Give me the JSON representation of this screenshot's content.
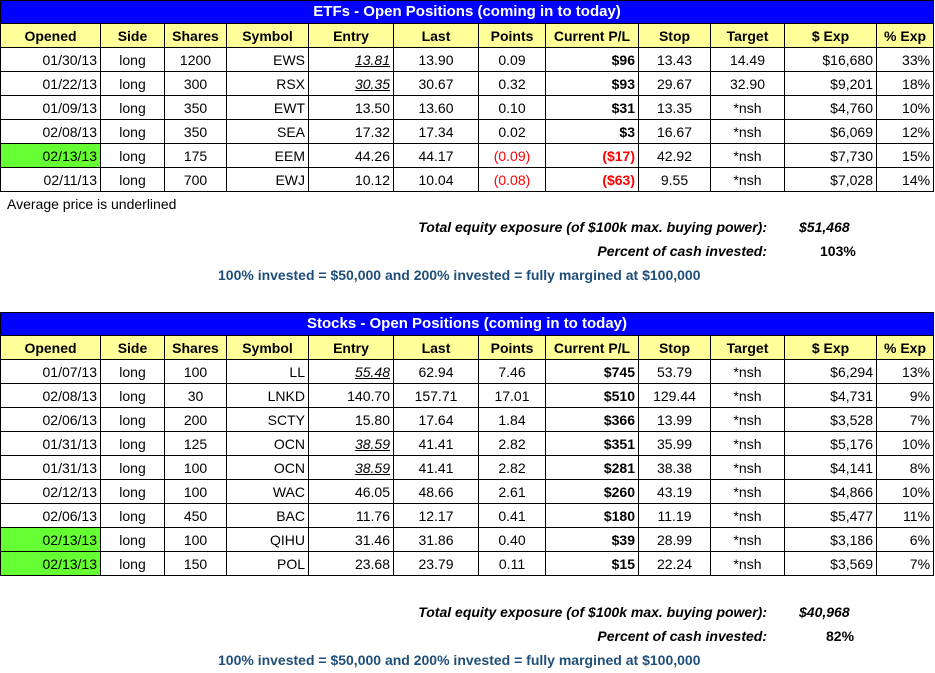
{
  "headers": [
    "Opened",
    "Side",
    "Shares",
    "Symbol",
    "Entry",
    "Last",
    "Points",
    "Current P/L",
    "Stop",
    "Target",
    "$ Exp",
    "% Exp"
  ],
  "etfs": {
    "title": "ETFs - Open Positions (coming in to today)",
    "rows": [
      {
        "opened": "01/30/13",
        "side": "long",
        "shares": "1200",
        "symbol": "EWS",
        "entry": "13.81",
        "last": "13.90",
        "points": "0.09",
        "pl": "$96",
        "stop": "13.43",
        "target": "14.49",
        "exp": "$16,680",
        "pexp": "33%",
        "entry_underlined": true,
        "negative": false,
        "new": false
      },
      {
        "opened": "01/22/13",
        "side": "long",
        "shares": "300",
        "symbol": "RSX",
        "entry": "30.35",
        "last": "30.67",
        "points": "0.32",
        "pl": "$93",
        "stop": "29.67",
        "target": "32.90",
        "exp": "$9,201",
        "pexp": "18%",
        "entry_underlined": true,
        "negative": false,
        "new": false
      },
      {
        "opened": "01/09/13",
        "side": "long",
        "shares": "350",
        "symbol": "EWT",
        "entry": "13.50",
        "last": "13.60",
        "points": "0.10",
        "pl": "$31",
        "stop": "13.35",
        "target": "*nsh",
        "exp": "$4,760",
        "pexp": "10%",
        "entry_underlined": false,
        "negative": false,
        "new": false
      },
      {
        "opened": "02/08/13",
        "side": "long",
        "shares": "350",
        "symbol": "SEA",
        "entry": "17.32",
        "last": "17.34",
        "points": "0.02",
        "pl": "$3",
        "stop": "16.67",
        "target": "*nsh",
        "exp": "$6,069",
        "pexp": "12%",
        "entry_underlined": false,
        "negative": false,
        "new": false
      },
      {
        "opened": "02/13/13",
        "side": "long",
        "shares": "175",
        "symbol": "EEM",
        "entry": "44.26",
        "last": "44.17",
        "points": "(0.09)",
        "pl": "($17)",
        "stop": "42.92",
        "target": "*nsh",
        "exp": "$7,730",
        "pexp": "15%",
        "entry_underlined": false,
        "negative": true,
        "new": true
      },
      {
        "opened": "02/11/13",
        "side": "long",
        "shares": "700",
        "symbol": "EWJ",
        "entry": "10.12",
        "last": "10.04",
        "points": "(0.08)",
        "pl": "($63)",
        "stop": "9.55",
        "target": "*nsh",
        "exp": "$7,028",
        "pexp": "14%",
        "entry_underlined": false,
        "negative": true,
        "new": false
      }
    ],
    "note": "Average price is underlined",
    "exposure_label": "Total equity exposure (of $100k max. buying power):",
    "exposure_value": "$51,468",
    "cash_label": "Percent of cash invested:",
    "cash_value": "103%",
    "invested_text": "100% invested = $50,000 and 200% invested = fully margined at $100,000"
  },
  "stocks": {
    "title": "Stocks - Open Positions (coming in to today)",
    "rows": [
      {
        "opened": "01/07/13",
        "side": "long",
        "shares": "100",
        "symbol": "LL",
        "entry": "55.48",
        "last": "62.94",
        "points": "7.46",
        "pl": "$745",
        "stop": "53.79",
        "target": "*nsh",
        "exp": "$6,294",
        "pexp": "13%",
        "entry_underlined": true,
        "negative": false,
        "new": false
      },
      {
        "opened": "02/08/13",
        "side": "long",
        "shares": "30",
        "symbol": "LNKD",
        "entry": "140.70",
        "last": "157.71",
        "points": "17.01",
        "pl": "$510",
        "stop": "129.44",
        "target": "*nsh",
        "exp": "$4,731",
        "pexp": "9%",
        "entry_underlined": false,
        "negative": false,
        "new": false
      },
      {
        "opened": "02/06/13",
        "side": "long",
        "shares": "200",
        "symbol": "SCTY",
        "entry": "15.80",
        "last": "17.64",
        "points": "1.84",
        "pl": "$366",
        "stop": "13.99",
        "target": "*nsh",
        "exp": "$3,528",
        "pexp": "7%",
        "entry_underlined": false,
        "negative": false,
        "new": false
      },
      {
        "opened": "01/31/13",
        "side": "long",
        "shares": "125",
        "symbol": "OCN",
        "entry": "38.59",
        "last": "41.41",
        "points": "2.82",
        "pl": "$351",
        "stop": "35.99",
        "target": "*nsh",
        "exp": "$5,176",
        "pexp": "10%",
        "entry_underlined": true,
        "negative": false,
        "new": false
      },
      {
        "opened": "01/31/13",
        "side": "long",
        "shares": "100",
        "symbol": "OCN",
        "entry": "38.59",
        "last": "41.41",
        "points": "2.82",
        "pl": "$281",
        "stop": "38.38",
        "target": "*nsh",
        "exp": "$4,141",
        "pexp": "8%",
        "entry_underlined": true,
        "negative": false,
        "new": false
      },
      {
        "opened": "02/12/13",
        "side": "long",
        "shares": "100",
        "symbol": "WAC",
        "entry": "46.05",
        "last": "48.66",
        "points": "2.61",
        "pl": "$260",
        "stop": "43.19",
        "target": "*nsh",
        "exp": "$4,866",
        "pexp": "10%",
        "entry_underlined": false,
        "negative": false,
        "new": false
      },
      {
        "opened": "02/06/13",
        "side": "long",
        "shares": "450",
        "symbol": "BAC",
        "entry": "11.76",
        "last": "12.17",
        "points": "0.41",
        "pl": "$180",
        "stop": "11.19",
        "target": "*nsh",
        "exp": "$5,477",
        "pexp": "11%",
        "entry_underlined": false,
        "negative": false,
        "new": false
      },
      {
        "opened": "02/13/13",
        "side": "long",
        "shares": "100",
        "symbol": "QIHU",
        "entry": "31.46",
        "last": "31.86",
        "points": "0.40",
        "pl": "$39",
        "stop": "28.99",
        "target": "*nsh",
        "exp": "$3,186",
        "pexp": "6%",
        "entry_underlined": false,
        "negative": false,
        "new": true
      },
      {
        "opened": "02/13/13",
        "side": "long",
        "shares": "150",
        "symbol": "POL",
        "entry": "23.68",
        "last": "23.79",
        "points": "0.11",
        "pl": "$15",
        "stop": "22.24",
        "target": "*nsh",
        "exp": "$3,569",
        "pexp": "7%",
        "entry_underlined": false,
        "negative": false,
        "new": true
      }
    ],
    "exposure_label": "Total equity exposure (of $100k max. buying power):",
    "exposure_value": "$40,968",
    "cash_label": "Percent of cash invested:",
    "cash_value": "82%",
    "invested_text": "100% invested = $50,000 and 200% invested = fully margined at $100,000"
  },
  "colors": {
    "title_bg": "#0000ff",
    "header_bg": "#ffff99",
    "new_position": "#66ff33",
    "negative": "#ff0000",
    "invested_text": "#1f4e79"
  }
}
